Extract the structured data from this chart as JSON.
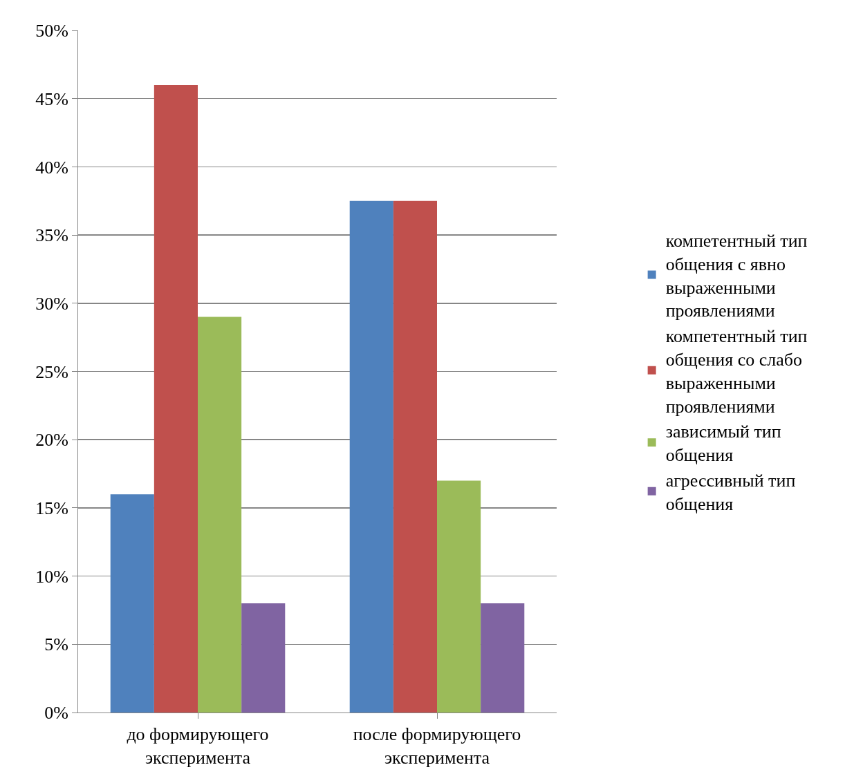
{
  "chart_data": {
    "type": "bar",
    "categories": [
      "до формирующего эксперимента",
      "после формирующего эксперимента"
    ],
    "series": [
      {
        "name": "компетентный тип общения с явно выраженными проявлениями",
        "color": "#4f81bd",
        "values": [
          16,
          37.5
        ]
      },
      {
        "name": "компетентный тип общения со слабо выраженными проявлениями",
        "color": "#c0504d",
        "values": [
          46,
          37.5
        ]
      },
      {
        "name": "зависимый тип общения",
        "color": "#9bbb59",
        "values": [
          29,
          17
        ]
      },
      {
        "name": "агрессивный тип общения",
        "color": "#8064a2",
        "values": [
          8,
          8
        ]
      }
    ],
    "ylim": [
      0,
      50
    ],
    "yticks": [
      {
        "value": 0,
        "label": "0%"
      },
      {
        "value": 5,
        "label": "5%"
      },
      {
        "value": 10,
        "label": "10%"
      },
      {
        "value": 15,
        "label": "15%"
      },
      {
        "value": 20,
        "label": "20%"
      },
      {
        "value": 25,
        "label": "25%"
      },
      {
        "value": 30,
        "label": "30%"
      },
      {
        "value": 35,
        "label": "35%"
      },
      {
        "value": 40,
        "label": "40%"
      },
      {
        "value": 45,
        "label": "45%"
      },
      {
        "value": 50,
        "label": "50%"
      }
    ],
    "grid": "y",
    "legend": "right"
  }
}
